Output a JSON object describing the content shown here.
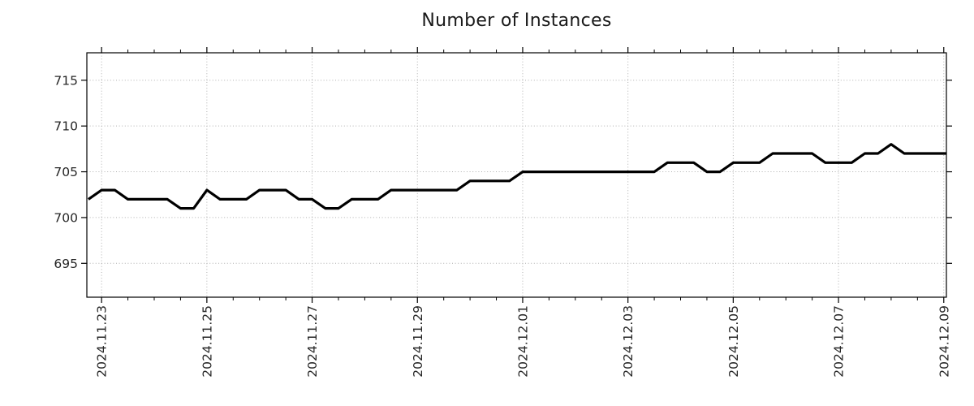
{
  "page": {
    "background": "#ffffff"
  },
  "chart_data": {
    "type": "line",
    "title": "Number of Instances",
    "grid": true,
    "legend": false,
    "x_axis": {
      "unit": "date",
      "tick_labels": [
        "2024.11.23",
        "2024.11.25",
        "2024.11.27",
        "2024.11.29",
        "2024.12.01",
        "2024.12.03",
        "2024.12.05",
        "2024.12.07",
        "2024.12.09"
      ],
      "tick_positions_days": [
        0,
        2,
        4,
        6,
        8,
        10,
        12,
        14,
        16
      ],
      "minor_tick_interval_days": 0.5,
      "xlim_days": [
        -0.28,
        16.05
      ],
      "origin_label": "2024.11.23"
    },
    "y_axis": {
      "ticks": [
        695,
        700,
        705,
        710,
        715
      ],
      "ylim": [
        691.3,
        718.0
      ]
    },
    "series": [
      {
        "name": "instances",
        "color": "#000000",
        "line_width": 3.2,
        "x_days": [
          -0.25,
          0,
          0.25,
          0.5,
          0.75,
          1,
          1.25,
          1.5,
          1.75,
          2,
          2.25,
          2.5,
          2.75,
          3,
          3.25,
          3.5,
          3.75,
          4,
          4.25,
          4.5,
          4.75,
          5,
          5.25,
          5.5,
          5.75,
          6,
          6.25,
          6.5,
          6.75,
          7,
          7.25,
          7.5,
          7.75,
          8,
          8.25,
          8.5,
          8.75,
          9,
          9.25,
          9.5,
          9.75,
          10,
          10.25,
          10.5,
          10.75,
          11,
          11.25,
          11.5,
          11.75,
          12,
          12.25,
          12.5,
          12.75,
          13,
          13.25,
          13.5,
          13.75,
          14,
          14.25,
          14.5,
          14.75,
          15,
          15.25,
          15.5,
          15.75,
          16,
          16.05
        ],
        "values": [
          702,
          703,
          703,
          702,
          702,
          702,
          702,
          701,
          701,
          703,
          702,
          702,
          702,
          703,
          703,
          703,
          702,
          702,
          701,
          701,
          702,
          702,
          702,
          703,
          703,
          703,
          703,
          703,
          703,
          704,
          704,
          704,
          704,
          705,
          705,
          705,
          705,
          705,
          705,
          705,
          705,
          705,
          705,
          705,
          706,
          706,
          706,
          705,
          705,
          706,
          706,
          706,
          707,
          707,
          707,
          707,
          706,
          706,
          706,
          707,
          707,
          708,
          707,
          707,
          707,
          707,
          707
        ]
      }
    ],
    "colors": {
      "grid": "#b0b0b0",
      "spine": "#000000",
      "tick_label": "#262626",
      "title": "#1a1a1a"
    }
  }
}
